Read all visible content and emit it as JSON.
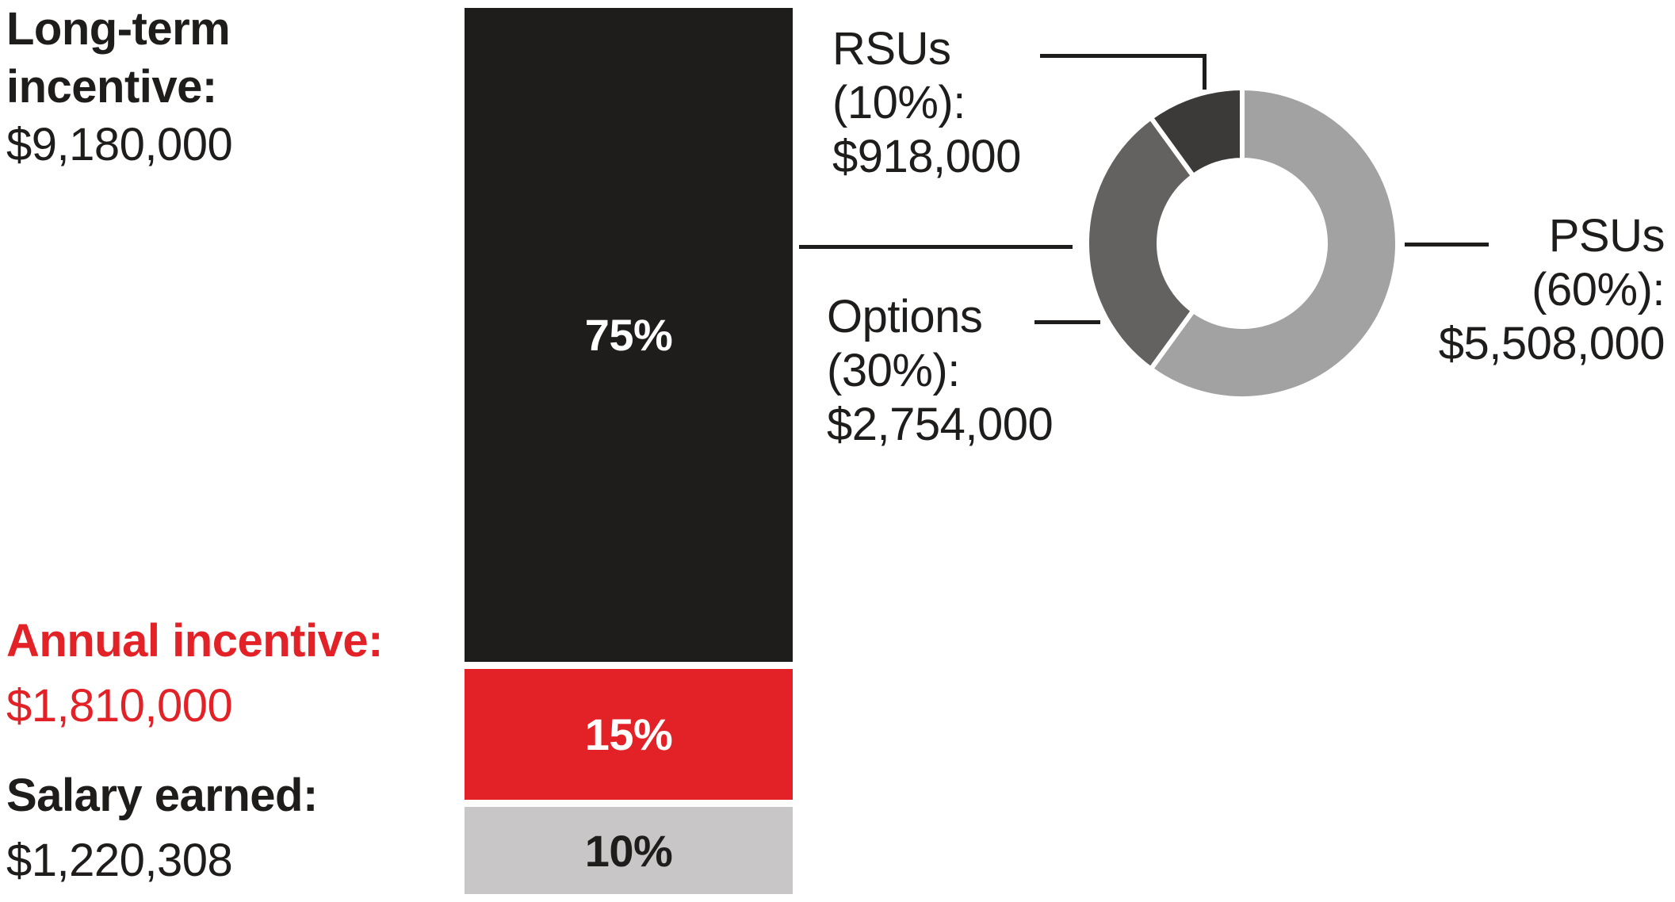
{
  "colors": {
    "text_dark": "#1f1d1c",
    "accent_red": "#e32227",
    "bar_black": "#1f1d1c",
    "bar_red": "#e32227",
    "bar_gray": "#c8c6c6",
    "donut_light_gray": "#a3a2a2",
    "donut_mid_gray": "#646261",
    "donut_dark_gray": "#3b3a39",
    "callout_line": "#1f1d1c"
  },
  "bar_labels": {
    "long_term": {
      "title_line1": "Long-term",
      "title_line2": "incentive:",
      "value": "$9,180,000"
    },
    "annual": {
      "title": "Annual incentive:",
      "value": "$1,810,000"
    },
    "salary": {
      "title": "Salary earned:",
      "value": "$1,220,308"
    }
  },
  "donut_labels": {
    "rsus": {
      "line1": "RSUs",
      "line2": "(10%):",
      "value": "$918,000"
    },
    "options": {
      "line1": "Options",
      "line2": "(30%):",
      "value": "$2,754,000"
    },
    "psus": {
      "line1": "PSUs",
      "line2": "(60%):",
      "value": "$5,508,000"
    }
  },
  "chart_data": [
    {
      "type": "bar",
      "subtype": "stacked-percentage-column",
      "categories": [
        "Long-term incentive",
        "Annual incentive",
        "Salary earned"
      ],
      "values": [
        75,
        15,
        10
      ],
      "value_labels": [
        "75%",
        "15%",
        "10%"
      ],
      "amount_labels": [
        "$9,180,000",
        "$1,810,000",
        "$1,220,308"
      ],
      "segment_colors": [
        "#1f1d1c",
        "#e32227",
        "#c8c6c6"
      ],
      "segment_text_colors": [
        "#ffffff",
        "#ffffff",
        "#1f1d1c"
      ],
      "ylim": [
        0,
        100
      ],
      "legend": "none",
      "grid": false
    },
    {
      "type": "pie",
      "subtype": "donut",
      "direction": "clockwise",
      "start_angle_deg": 0,
      "slices": [
        {
          "label": "PSUs",
          "pct": 60,
          "amount_label": "$5,508,000",
          "color": "#a3a2a2"
        },
        {
          "label": "Options",
          "pct": 30,
          "amount_label": "$2,754,000",
          "color": "#646261"
        },
        {
          "label": "RSUs",
          "pct": 10,
          "amount_label": "$918,000",
          "color": "#3b3a39"
        }
      ],
      "legend": "callout-labels",
      "grid": false
    }
  ]
}
